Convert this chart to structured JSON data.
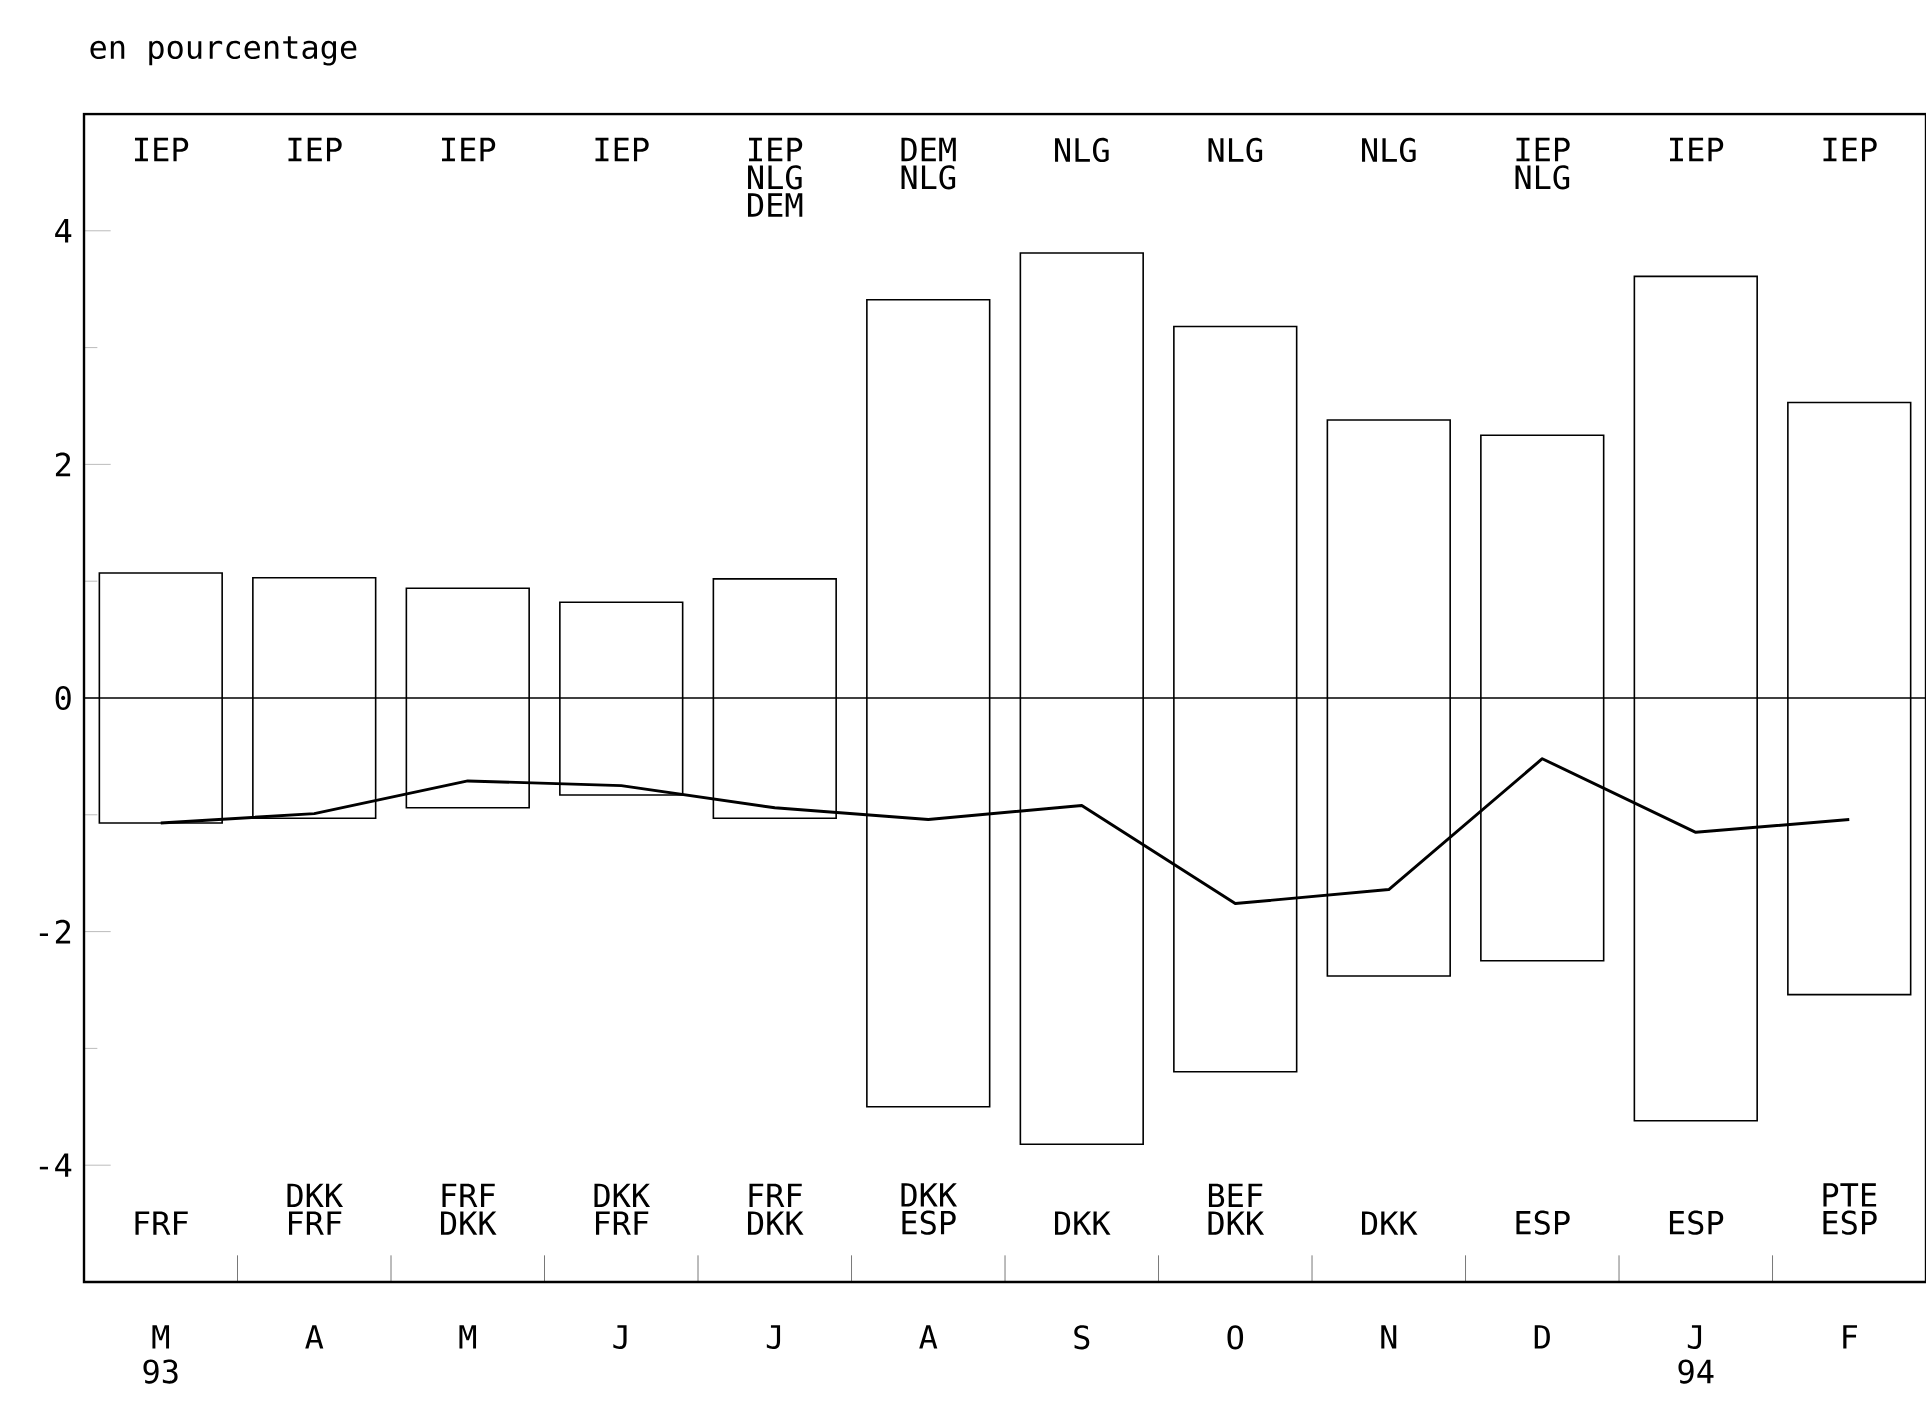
{
  "chart_data": {
    "type": "bar",
    "title": "en pourcentage",
    "categories": [
      "M 93",
      "A",
      "M",
      "J",
      "J",
      "A",
      "S",
      "O",
      "N",
      "D",
      "J 94",
      "F"
    ],
    "series": [
      {
        "color": "#000000",
        "base": [
          -1.07,
          -1.03,
          -0.94,
          -0.83,
          -1.03,
          -3.5,
          -3.82,
          -3.2,
          -2.38,
          -2.25,
          -3.62,
          -2.54
        ],
        "values": [
          2.14,
          2.06,
          1.88,
          1.65,
          2.05,
          6.91,
          7.63,
          6.38,
          4.76,
          4.5,
          7.23,
          5.07
        ]
      },
      {
        "type": "line",
        "color": "#000000",
        "values": [
          -1.07,
          -0.99,
          -0.71,
          -0.75,
          -0.94,
          -1.04,
          -0.92,
          -1.76,
          -1.64,
          -0.52,
          -1.15,
          -1.04
        ]
      }
    ],
    "ylim": [
      -5,
      5
    ],
    "yticks": [
      {
        "value": -5,
        "label": null
      },
      -4,
      {
        "value": -3,
        "label": null
      },
      -2,
      {
        "value": -1,
        "label": null
      },
      0,
      {
        "value": 1,
        "label": null
      },
      2,
      {
        "value": 3,
        "label": null
      },
      4
    ],
    "ref_lines": [
      {
        "axis": "y",
        "value": 0
      }
    ],
    "annotations": [
      "IEP",
      "IEP",
      "IEP",
      "IEP",
      "IEP NLG DEM",
      "DEM NLG",
      "NLG",
      "NLG",
      "NLG",
      "IEP NLG",
      "IEP",
      "IEP",
      "FRF",
      "DKK FRF",
      "FRF DKK",
      "DKK FRF",
      "FRF DKK",
      "DKK ESP",
      "DKK",
      "BEF DKK",
      "DKK",
      "ESP",
      "ESP",
      "PTE ESP"
    ]
  }
}
